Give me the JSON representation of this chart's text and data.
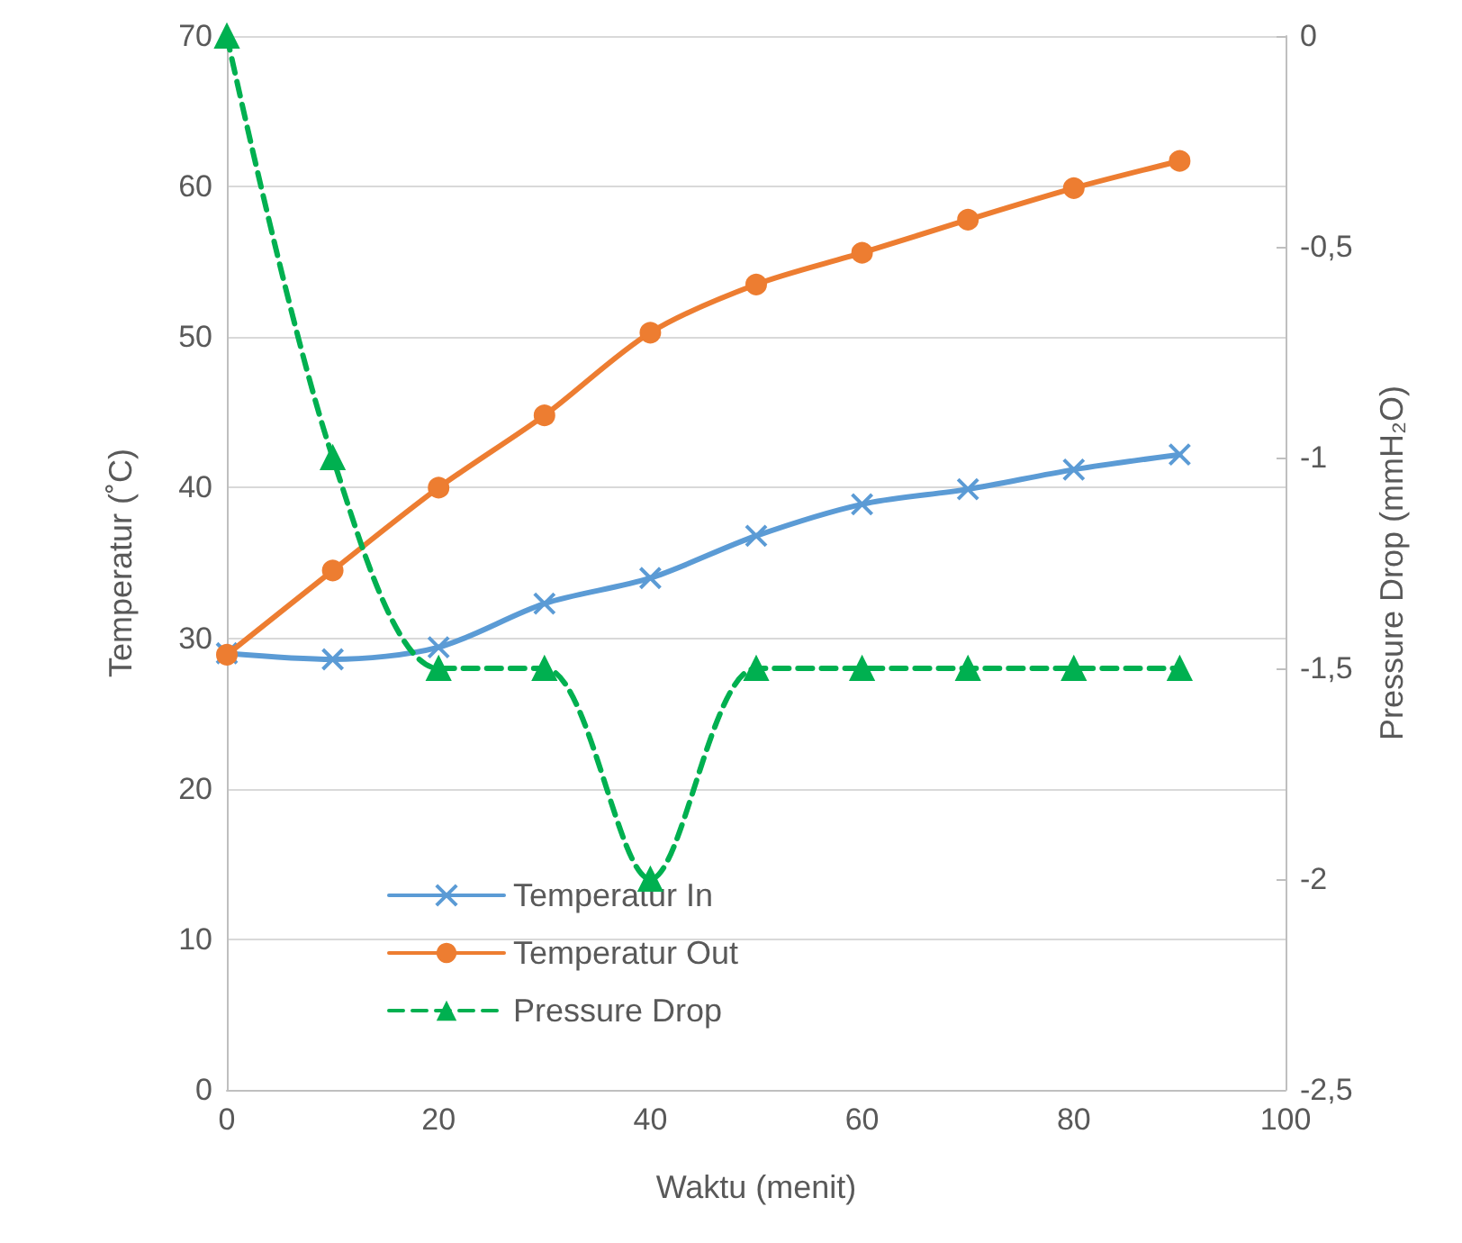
{
  "chart_data": {
    "type": "line",
    "xlabel": "Waktu (menit)",
    "ylabel": "Temperatur (˚C)",
    "y2label": "Pressure Drop (mmH₂O)",
    "x": [
      0,
      10,
      20,
      30,
      40,
      50,
      60,
      70,
      80,
      90
    ],
    "xlim": [
      0,
      100
    ],
    "xticks": [
      0,
      20,
      40,
      60,
      80,
      100
    ],
    "ylim": [
      0,
      70
    ],
    "yticks": [
      0,
      10,
      20,
      30,
      40,
      50,
      60,
      70
    ],
    "y2lim": [
      -2.5,
      0
    ],
    "y2ticks": [
      {
        "value": -2.5,
        "label": "-2,5"
      },
      {
        "value": -2,
        "label": "-2"
      },
      {
        "value": -1.5,
        "label": "-1,5"
      },
      {
        "value": -1,
        "label": "-1"
      },
      {
        "value": -0.5,
        "label": "-0,5"
      },
      {
        "value": 0,
        "label": "0"
      }
    ],
    "grid": "y",
    "legend": "bottom left",
    "series": [
      {
        "name": "Temperatur In",
        "color": "#5b9bd5",
        "marker": "cross",
        "line_style": "solid",
        "values": [
          29,
          28.6,
          29.4,
          32.3,
          34,
          36.8,
          38.9,
          39.9,
          41.2,
          42.2
        ]
      },
      {
        "name": "Temperatur Out",
        "color": "#ed7d31",
        "marker": "circle",
        "line_style": "solid",
        "values": [
          28.9,
          34.5,
          40,
          44.8,
          50.3,
          53.5,
          55.6,
          57.8,
          59.9,
          61.7
        ]
      },
      {
        "name": "Pressure Drop",
        "color": "#00b050",
        "marker": "triangle",
        "line_style": "dashed",
        "axis": "y2",
        "values": [
          0,
          -1,
          -1.5,
          -1.5,
          -2,
          -1.5,
          -1.5,
          -1.5,
          -1.5,
          -1.5
        ]
      }
    ]
  }
}
